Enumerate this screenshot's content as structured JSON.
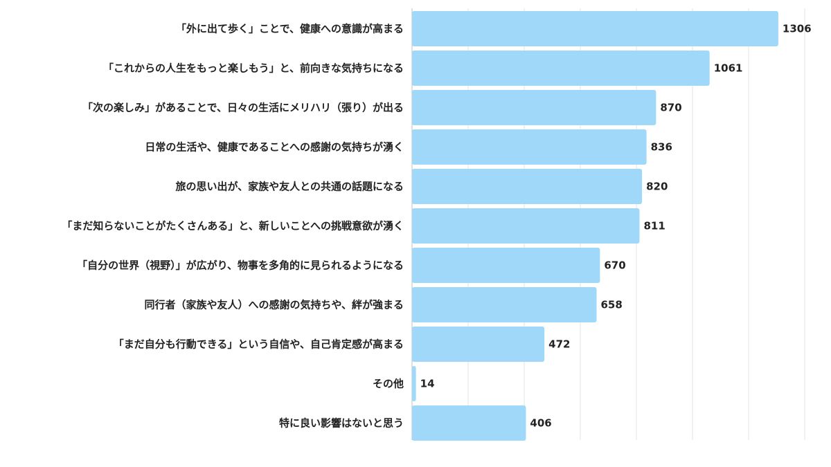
{
  "chart_data": {
    "type": "bar",
    "orientation": "horizontal",
    "categories": [
      "「外に出て歩く」ことで、健康への意識が高まる",
      "「これからの人生をもっと楽しもう」と、前向きな気持ちになる",
      "「次の楽しみ」があることで、日々の生活にメリハリ（張り）が出る",
      "日常の生活や、健康であることへの感謝の気持ちが湧く",
      "旅の思い出が、家族や友人との共通の話題になる",
      "「まだ知らないことがたくさんある」と、新しいことへの挑戦意欲が湧く",
      "「自分の世界（視野）」が広がり、物事を多角的に見られるようになる",
      "同行者（家族や友人）への感謝の気持ちや、絆が強まる",
      "「まだ自分も行動できる」という自信や、自己肯定感が高まる",
      "その他",
      "特に良い影響はないと思う"
    ],
    "values": [
      1306,
      1061,
      870,
      836,
      820,
      811,
      670,
      658,
      472,
      14,
      406
    ],
    "xlim": [
      0,
      1400
    ],
    "grid": true,
    "legend": "none",
    "bar_color": "#a0d8fa"
  }
}
